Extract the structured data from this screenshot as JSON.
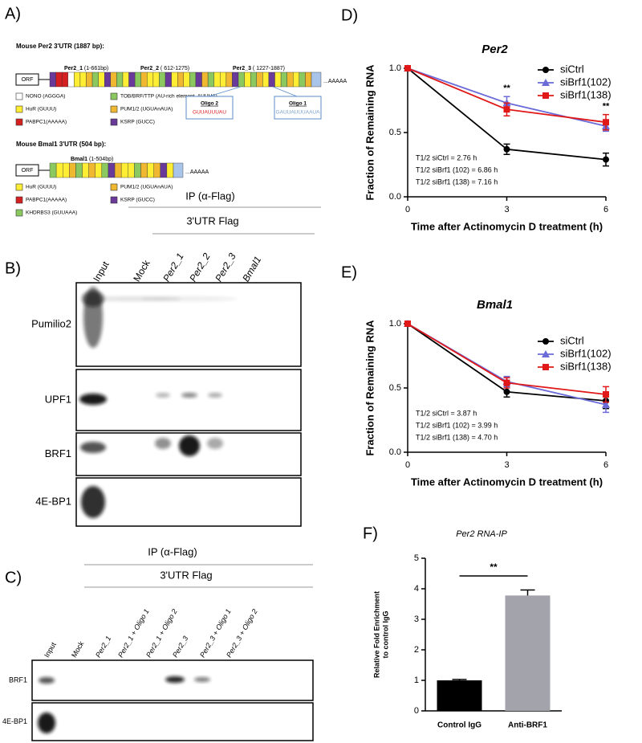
{
  "panel_a": {
    "label": "A)",
    "per2": {
      "title": "Mouse Per2 3'UTR (1887 bp):",
      "orf": "ORF",
      "tail": "...AAAAA",
      "segments": [
        {
          "name": "Per2_1",
          "range": " (1-661bp)"
        },
        {
          "name": "Per2_2",
          "range": " ( 612-1275)"
        },
        {
          "name": "Per2_3",
          "range": " ( 1227-1887)"
        }
      ],
      "legend": [
        {
          "text": "NONO (AGGGA)",
          "color": "#ffffff"
        },
        {
          "text": "HuR (GUUU)",
          "color": "#ffee33"
        },
        {
          "text": "PABPC1(AAAAA)",
          "color": "#d42020"
        },
        {
          "text": "TOB/BRF/TTP (AU-rich element, AUUUA)",
          "color": "#8cc860"
        },
        {
          "text": "PUM1/2 (UGUAnAUA)",
          "color": "#f0b830"
        },
        {
          "text": "KSRP (GUCC)",
          "color": "#6a3a9a"
        }
      ],
      "oligos": [
        {
          "name": "Oligo 2",
          "seq": "GUUAUUUAU",
          "color": "#e02020"
        },
        {
          "name": "Oligo 1",
          "seq": "GAUUAUUUAAUA",
          "color": "#7aa0d0"
        }
      ]
    },
    "bmal1": {
      "title": "Mouse Bmal1 3'UTR (504 bp):",
      "orf": "ORF",
      "tail": "...AAAAA",
      "segments": [
        {
          "name": "Bmal1",
          "range": " (1-504bp)"
        }
      ],
      "legend": [
        {
          "text": "HuR (GUUU)",
          "color": "#ffee33"
        },
        {
          "text": "PABPC1(AAAAA)",
          "color": "#d42020"
        },
        {
          "text": "KHDRBS3 (GUUAAA)",
          "color": "#8cc860"
        },
        {
          "text": "PUM1/2 (UGUAnAUA)",
          "color": "#f0b830"
        },
        {
          "text": "KSRP (GUCC)",
          "color": "#6a3a9a"
        }
      ]
    }
  },
  "panel_b": {
    "label": "B)",
    "ip": "IP (α-Flag)",
    "subheader": "3'UTR Flag",
    "lanes": [
      "Input",
      "Mock",
      "Per2_1",
      "Per2_2",
      "Per2_3",
      "Bmal1"
    ],
    "rows": [
      "Pumilio2",
      "UPF1",
      "BRF1",
      "4E-BP1"
    ]
  },
  "panel_c": {
    "label": "C)",
    "ip": "IP (α-Flag)",
    "subheader": "3'UTR Flag",
    "lanes": [
      "Input",
      "Mock",
      "Per2_1",
      "Per2_1 + Oligo 1",
      "Per2_1 + Oligo 2",
      "Per2_3",
      "Per2_3 + Oligo 1",
      "Per2_3 + Oligo 2"
    ],
    "rows": [
      "BRF1",
      "4E-BP1"
    ]
  },
  "chart_data": [
    {
      "type": "line",
      "label": "D)",
      "title": "Per2",
      "xlabel": "Time after Actinomycin D treatment (h)",
      "ylabel": "Fraction of Remaining RNA",
      "x": [
        0,
        3,
        6
      ],
      "xlim": [
        0,
        6
      ],
      "xticks": [
        0,
        3,
        6
      ],
      "ylim": [
        0,
        1
      ],
      "yticks": [
        {
          "value": 0,
          "label": "0.0"
        },
        0.5,
        {
          "value": 1,
          "label": "1.0"
        }
      ],
      "series": [
        {
          "name": "siCtrl",
          "color": "#000000",
          "marker": "circle",
          "values": [
            1,
            0.37,
            0.29
          ],
          "errors": [
            0,
            0.04,
            0.05
          ]
        },
        {
          "name": "siBrf1(102)",
          "color": "#6a6ad8",
          "marker": "triangle",
          "values": [
            1,
            0.73,
            0.55
          ],
          "errors": [
            0,
            0.05,
            0.04
          ]
        },
        {
          "name": "siBrf1(138)",
          "color": "#e01818",
          "marker": "square",
          "values": [
            1,
            0.68,
            0.58
          ],
          "errors": [
            0,
            0.05,
            0.06
          ]
        }
      ],
      "annotations": [
        "**",
        "**"
      ],
      "notes": [
        "T1/2 siCtrl = 2.76 h",
        "T1/2 siBrf1 (102) = 6.86 h",
        "T1/2 siBrf1 (138) = 7.16 h"
      ]
    },
    {
      "type": "line",
      "label": "E)",
      "title": "Bmal1",
      "xlabel": "Time after Actinomycin D treatment (h)",
      "ylabel": "Fraction of Remaining RNA",
      "x": [
        0,
        3,
        6
      ],
      "xlim": [
        0,
        6
      ],
      "xticks": [
        0,
        3,
        6
      ],
      "ylim": [
        0,
        1
      ],
      "yticks": [
        {
          "value": 0,
          "label": "0.0"
        },
        0.5,
        {
          "value": 1,
          "label": "1.0"
        }
      ],
      "series": [
        {
          "name": "siCtrl",
          "color": "#000000",
          "marker": "circle",
          "values": [
            1,
            0.47,
            0.4
          ],
          "errors": [
            0,
            0.04,
            0.06
          ]
        },
        {
          "name": "siBrf1(102)",
          "color": "#6a6ad8",
          "marker": "triangle",
          "values": [
            1,
            0.55,
            0.37
          ],
          "errors": [
            0,
            0.04,
            0.06
          ]
        },
        {
          "name": "siBrf1(138)",
          "color": "#e01818",
          "marker": "square",
          "values": [
            1,
            0.54,
            0.45
          ],
          "errors": [
            0,
            0.04,
            0.06
          ]
        }
      ],
      "notes": [
        "T1/2 siCtrl = 3.87 h",
        "T1/2 siBrf1 (102) = 3.99 h",
        "T1/2 siBrf1 (138) = 4.70 h"
      ]
    },
    {
      "type": "bar",
      "label": "F)",
      "title": "Per2 RNA-IP",
      "ylabel": [
        "Relative Fold Enrichment",
        "to control IgG"
      ],
      "categories": [
        "Control IgG",
        "Anti-BRF1"
      ],
      "values": [
        1,
        3.78
      ],
      "errors": [
        0.03,
        0.18
      ],
      "colors": [
        "#000000",
        "#a3a3ab"
      ],
      "ylim": [
        0,
        5
      ],
      "yticks": [
        0,
        1,
        2,
        3,
        4,
        5
      ],
      "annotations": [
        "**"
      ]
    }
  ]
}
